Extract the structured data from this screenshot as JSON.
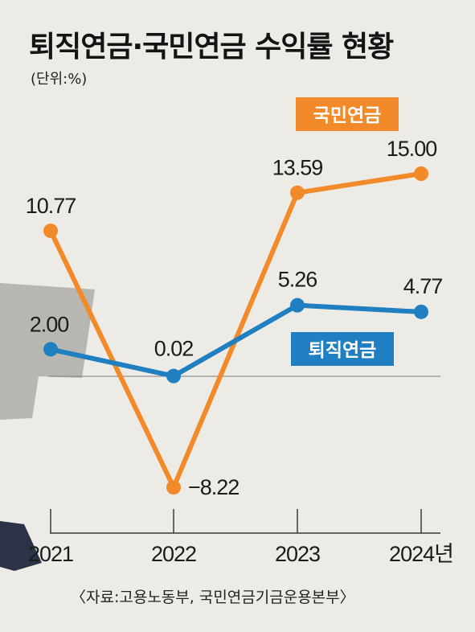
{
  "chart_data": {
    "type": "line",
    "title": "퇴직연금·국민연금 수익률 현황",
    "subtitle": "(단위:%)",
    "categories": [
      "2021",
      "2022",
      "2023",
      "2024년"
    ],
    "series": [
      {
        "name": "국민연금",
        "color": "#f28a2a",
        "values": [
          10.77,
          -8.22,
          13.59,
          15.0
        ],
        "labels": [
          "10.77",
          "−8.22",
          "13.59",
          "15.00"
        ]
      },
      {
        "name": "퇴직연금",
        "color": "#1f7fc0",
        "values": [
          2.0,
          0.02,
          5.26,
          4.77
        ],
        "labels": [
          "2.00",
          "0.02",
          "5.26",
          "4.77"
        ]
      }
    ],
    "ylim": [
      -10,
      17
    ],
    "zero_line": true,
    "source": "〈자료:고용노동부, 국민연금기금운용본부〉"
  }
}
